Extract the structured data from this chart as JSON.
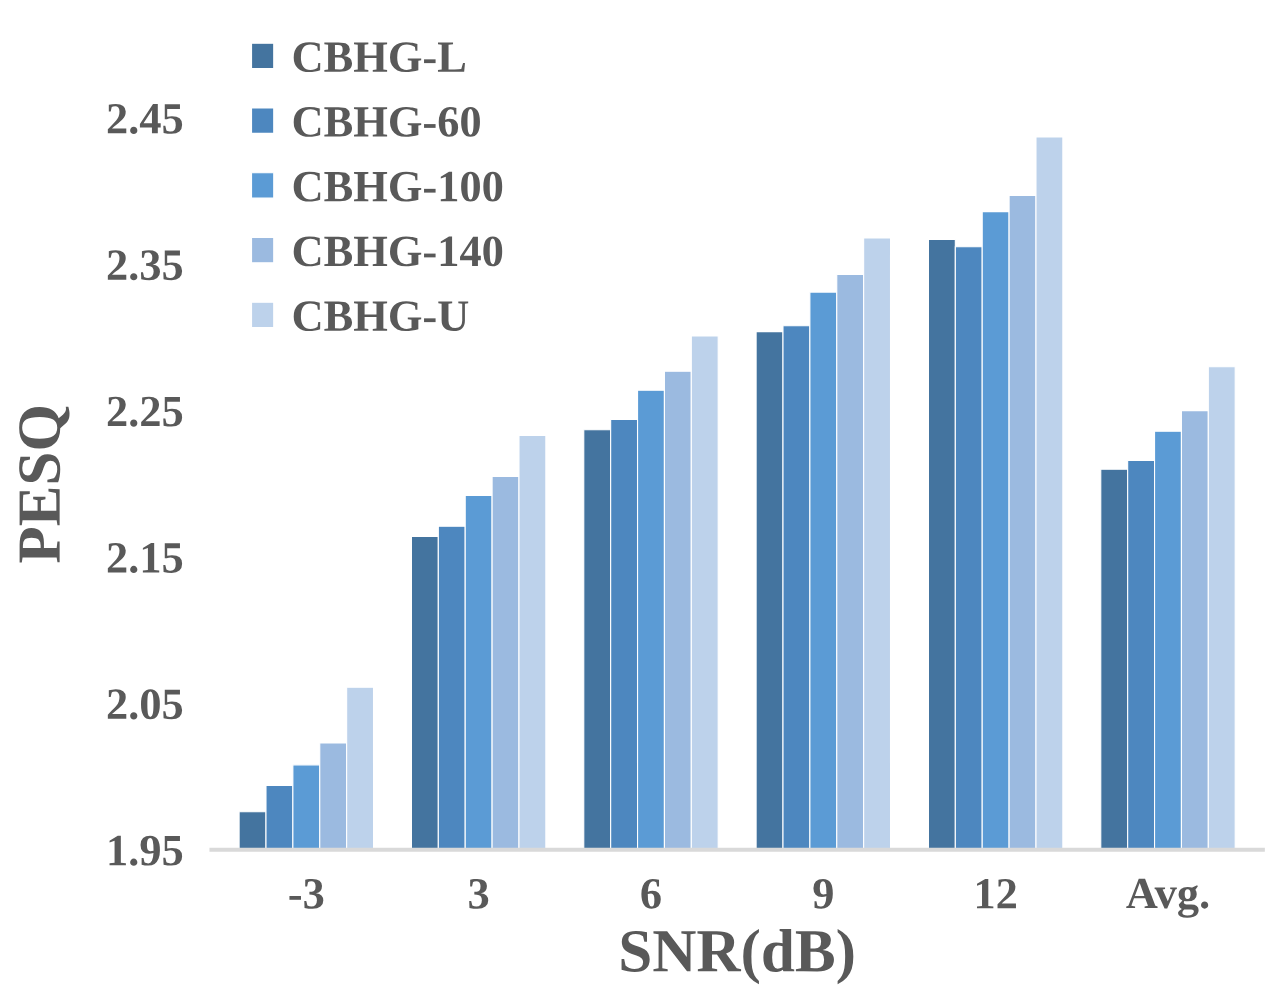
{
  "chart_data": {
    "type": "bar",
    "xlabel": "SNR(dB)",
    "ylabel": "PESQ",
    "categories": [
      "-3",
      "3",
      "6",
      "9",
      "12",
      "Avg."
    ],
    "series": [
      {
        "name": "CBHG-L",
        "color": "#44749f",
        "values": [
          1.976,
          2.164,
          2.237,
          2.304,
          2.367,
          2.21
        ]
      },
      {
        "name": "CBHG-60",
        "color": "#4d87bf",
        "values": [
          1.994,
          2.171,
          2.244,
          2.308,
          2.362,
          2.216
        ]
      },
      {
        "name": "CBHG-100",
        "color": "#5b9bd5",
        "values": [
          2.008,
          2.192,
          2.264,
          2.331,
          2.386,
          2.236
        ]
      },
      {
        "name": "CBHG-140",
        "color": "#9bbae0",
        "values": [
          2.023,
          2.205,
          2.277,
          2.343,
          2.397,
          2.25
        ]
      },
      {
        "name": "CBHG-U",
        "color": "#bdd2eb",
        "values": [
          2.061,
          2.233,
          2.301,
          2.368,
          2.437,
          2.28
        ]
      }
    ],
    "ylim": [
      1.95,
      2.45
    ],
    "yticks": [
      1.95,
      2.05,
      2.15,
      2.25,
      2.35,
      2.45
    ],
    "grid": false,
    "legend": "top left"
  }
}
